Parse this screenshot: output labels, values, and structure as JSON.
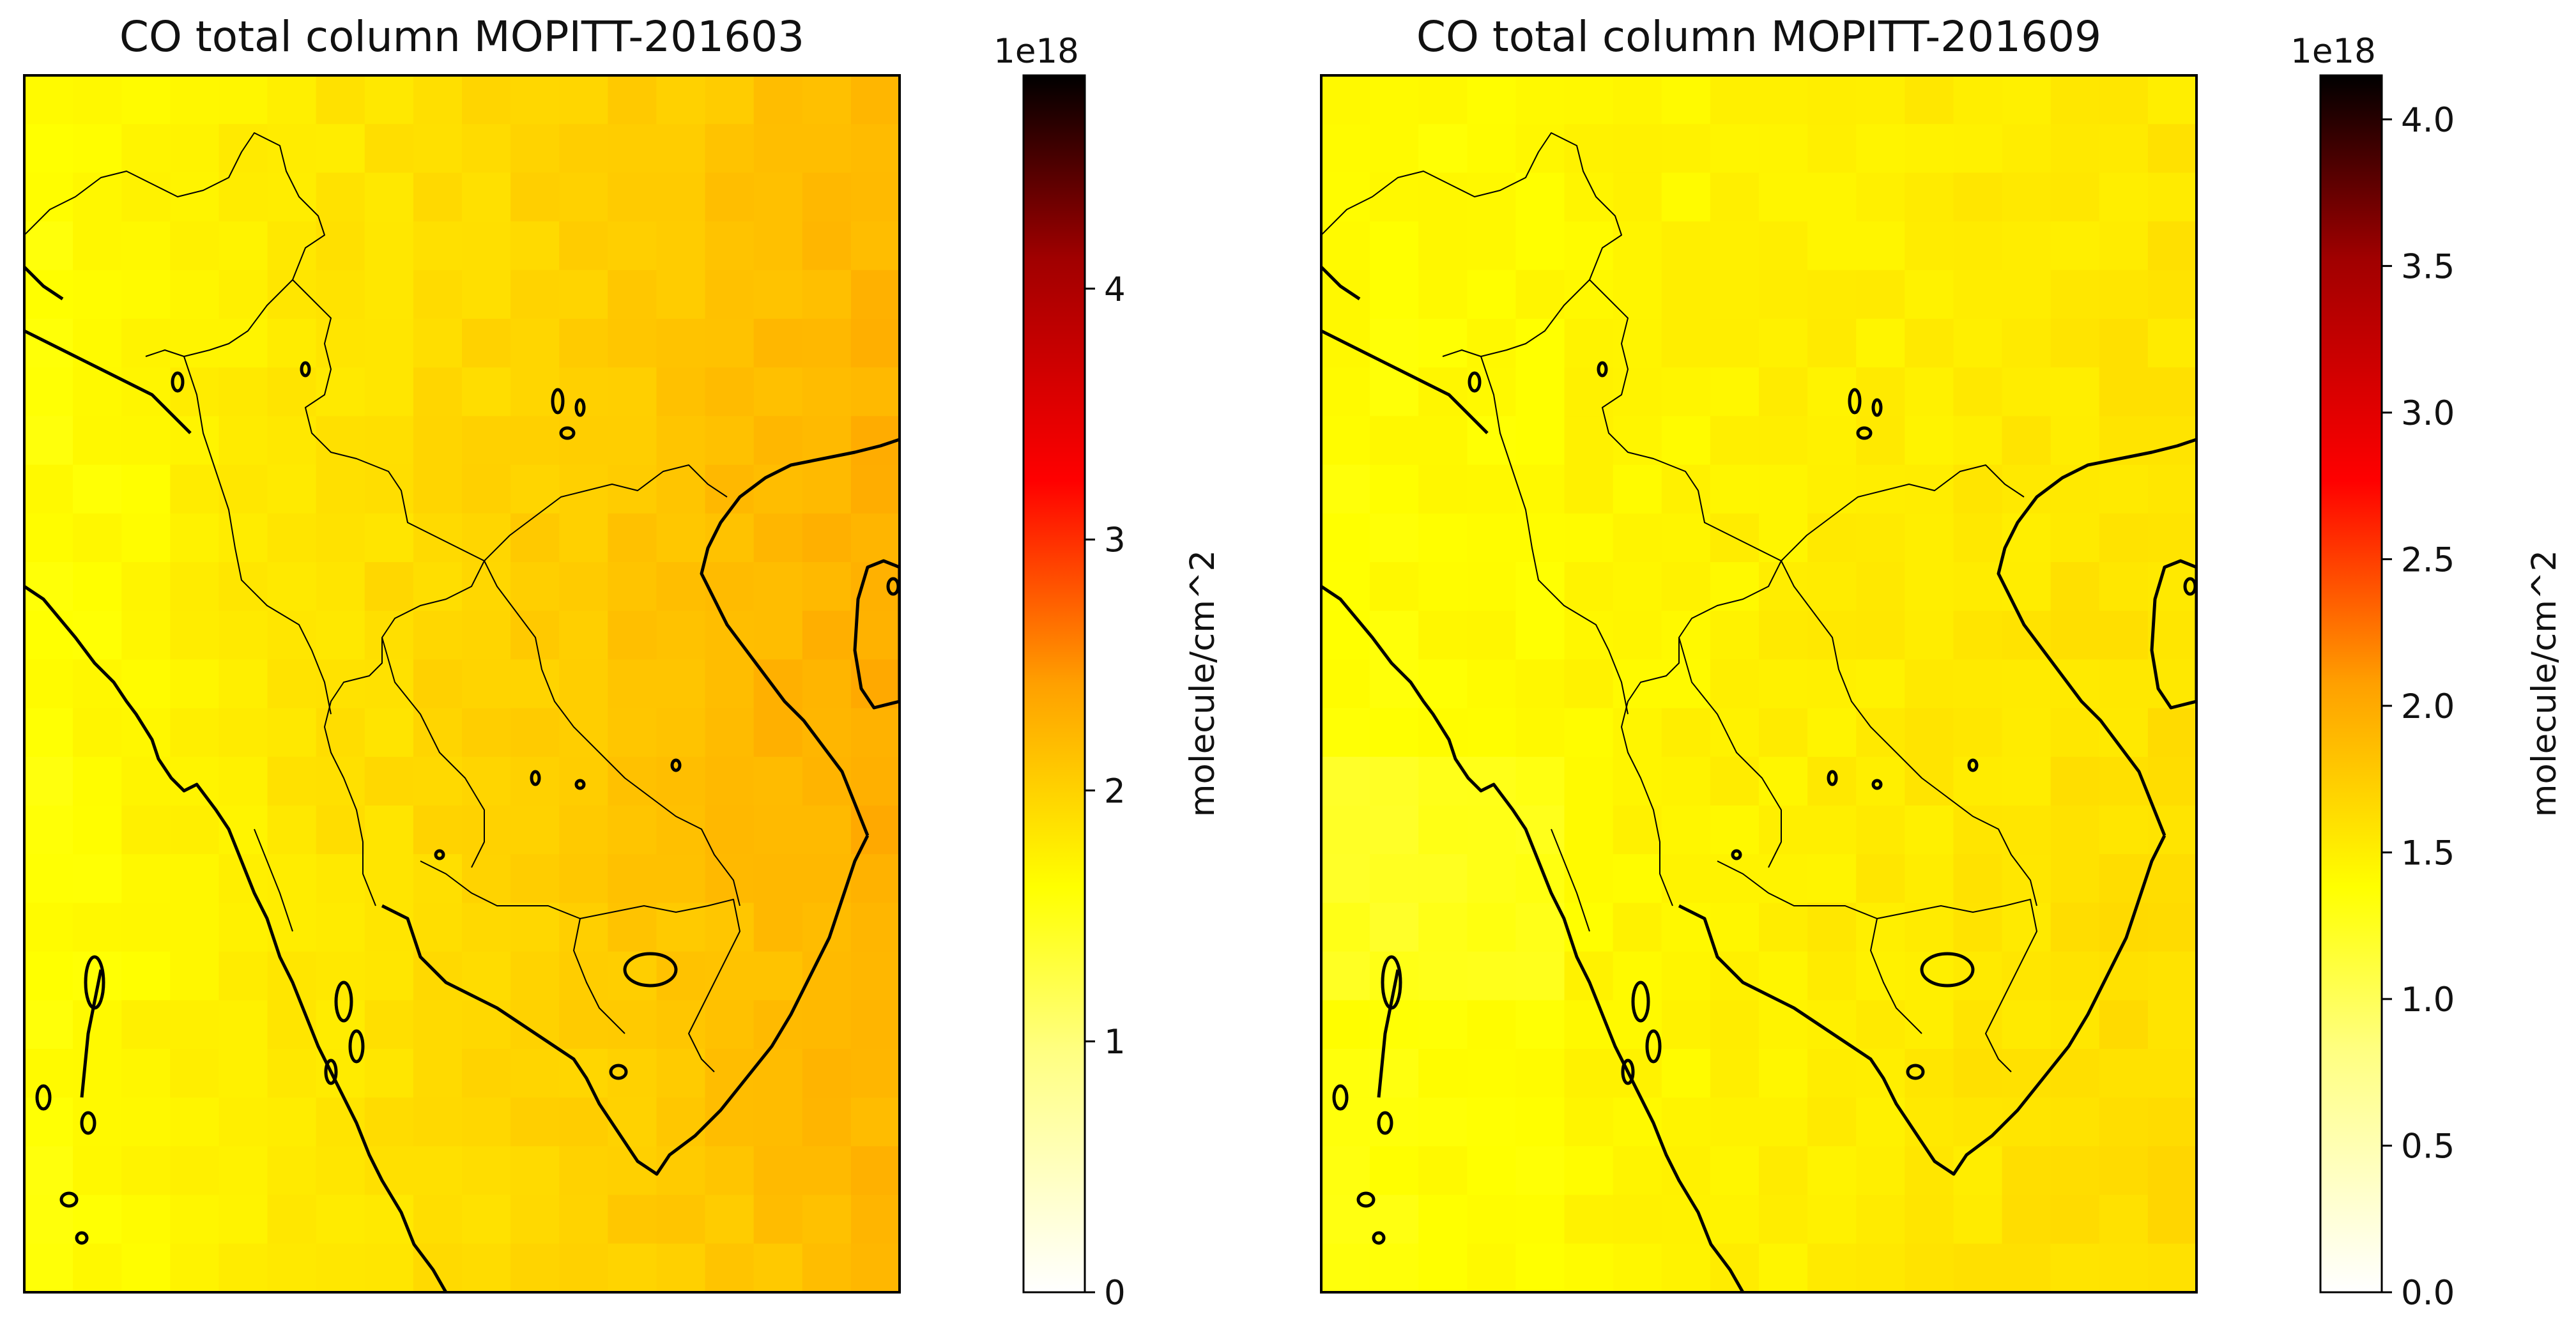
{
  "figure": {
    "background": "#ffffff",
    "colormap": "hot_r",
    "colormap_stops": [
      "#ffffff",
      "#ffff80",
      "#ffff00",
      "#ffa000",
      "#ff0000",
      "#a00000",
      "#000000"
    ],
    "colormap_positions": [
      0,
      0.2,
      0.333,
      0.5,
      0.667,
      0.85,
      1.0
    ]
  },
  "chart_data": [
    {
      "type": "heatmap",
      "title": "CO total column MOPITT-201603",
      "projection": "PlateCarree",
      "region": "Mainland Southeast Asia",
      "grid_cols": 18,
      "grid_rows": 25,
      "field_value_range_estimate": [
        1.45,
        2.35
      ],
      "field_trend": "increases from west to east, highest over Vietnam / South China Sea",
      "colorbar": {
        "label": "molecule/cm^2",
        "offset_text": "1e18",
        "vmin": 0,
        "vmax": 4.85,
        "ticks": [
          0,
          1,
          2,
          3,
          4
        ],
        "tick_labels": [
          "0",
          "1",
          "2",
          "3",
          "4"
        ]
      }
    },
    {
      "type": "heatmap",
      "title": "CO total column MOPITT-201609",
      "projection": "PlateCarree",
      "region": "Mainland Southeast Asia",
      "grid_cols": 18,
      "grid_rows": 25,
      "field_value_range_estimate": [
        1.1,
        1.75
      ],
      "field_trend": "fairly uniform, slightly higher in the southeast corner",
      "colorbar": {
        "label": "molecule/cm^2",
        "offset_text": "1e18",
        "vmin": 0,
        "vmax": 4.15,
        "ticks": [
          0.0,
          0.5,
          1.0,
          1.5,
          2.0,
          2.5,
          3.0,
          3.5,
          4.0
        ],
        "tick_labels": [
          "0.0",
          "0.5",
          "1.0",
          "1.5",
          "2.0",
          "2.5",
          "3.0",
          "3.5",
          "4.0"
        ]
      }
    }
  ]
}
